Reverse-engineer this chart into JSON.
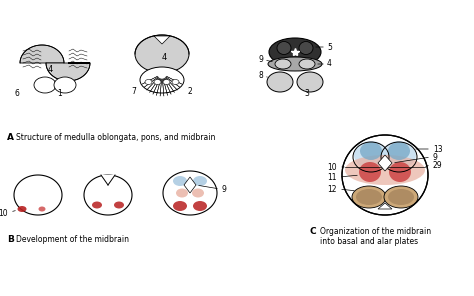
{
  "bg_color": "#ffffff",
  "gray_light": "#d0d0d0",
  "gray_mid": "#a8a8a8",
  "gray_dark": "#707070",
  "gray_darker": "#484848",
  "gray_darkest": "#303030",
  "red_dark": "#b82020",
  "red_mid": "#cc4444",
  "red_light": "#e09090",
  "red_salmon": "#e8b0a0",
  "blue_dark": "#7aaac8",
  "blue_mid": "#a8c8e0",
  "blue_light": "#c8dff0",
  "tan_dark": "#9a7a55",
  "tan_mid": "#b89060",
  "tan_light": "#cca878",
  "label_A": "Structure of medulla oblongata, pons, and midbrain",
  "label_B": "Development of the midbrain",
  "label_C1": "Organization of the midbrain",
  "label_C2": "into basal and alar plates"
}
